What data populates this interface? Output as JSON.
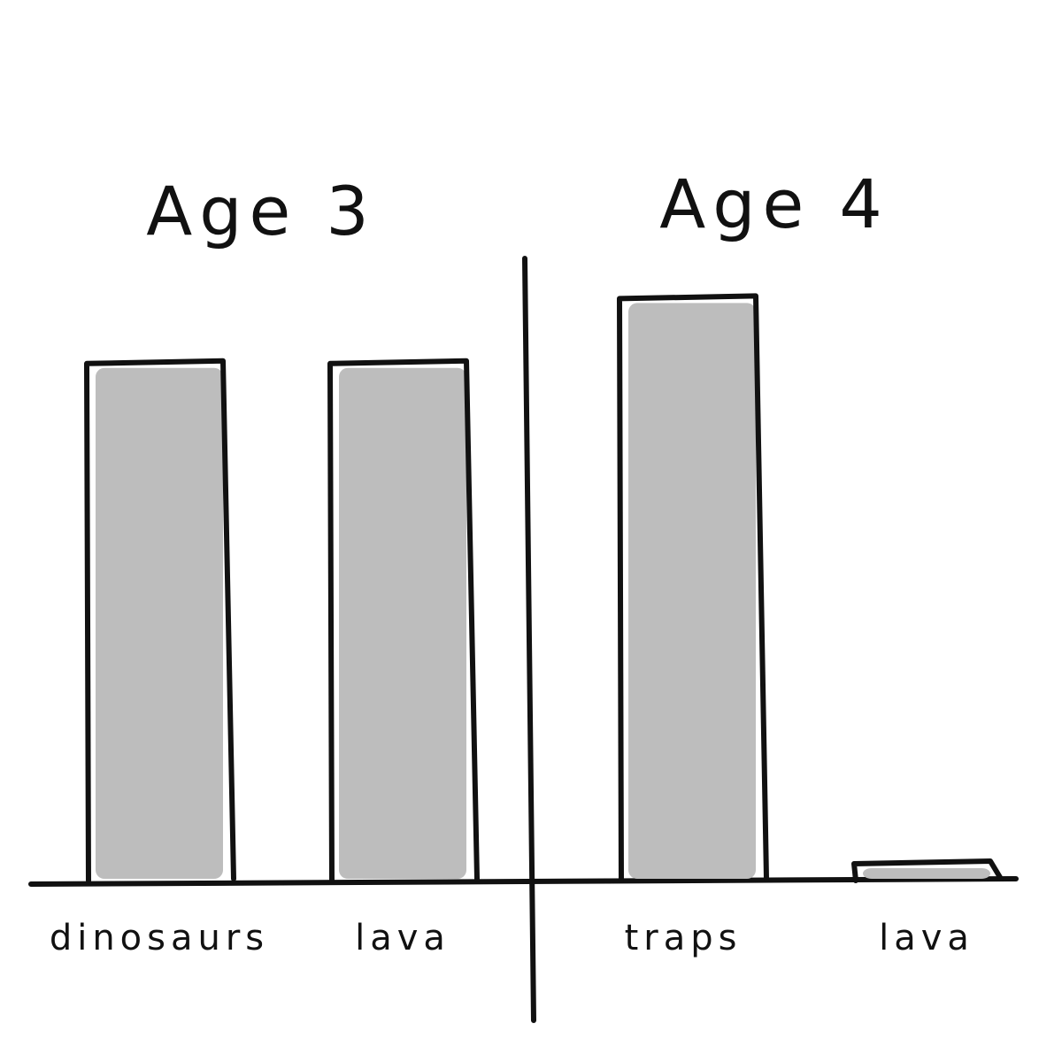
{
  "chart_data": {
    "type": "bar",
    "panels": [
      {
        "title": "Age 3",
        "categories": [
          "dinosaurs",
          "lava"
        ],
        "values": [
          0.8,
          0.8
        ]
      },
      {
        "title": "Age 4",
        "categories": [
          "traps",
          "lava"
        ],
        "values": [
          0.9,
          0.03
        ]
      }
    ],
    "ylim": [
      0,
      1
    ],
    "grid": false,
    "bar_color": "#bdbdbd",
    "outline_color": "#111111"
  }
}
